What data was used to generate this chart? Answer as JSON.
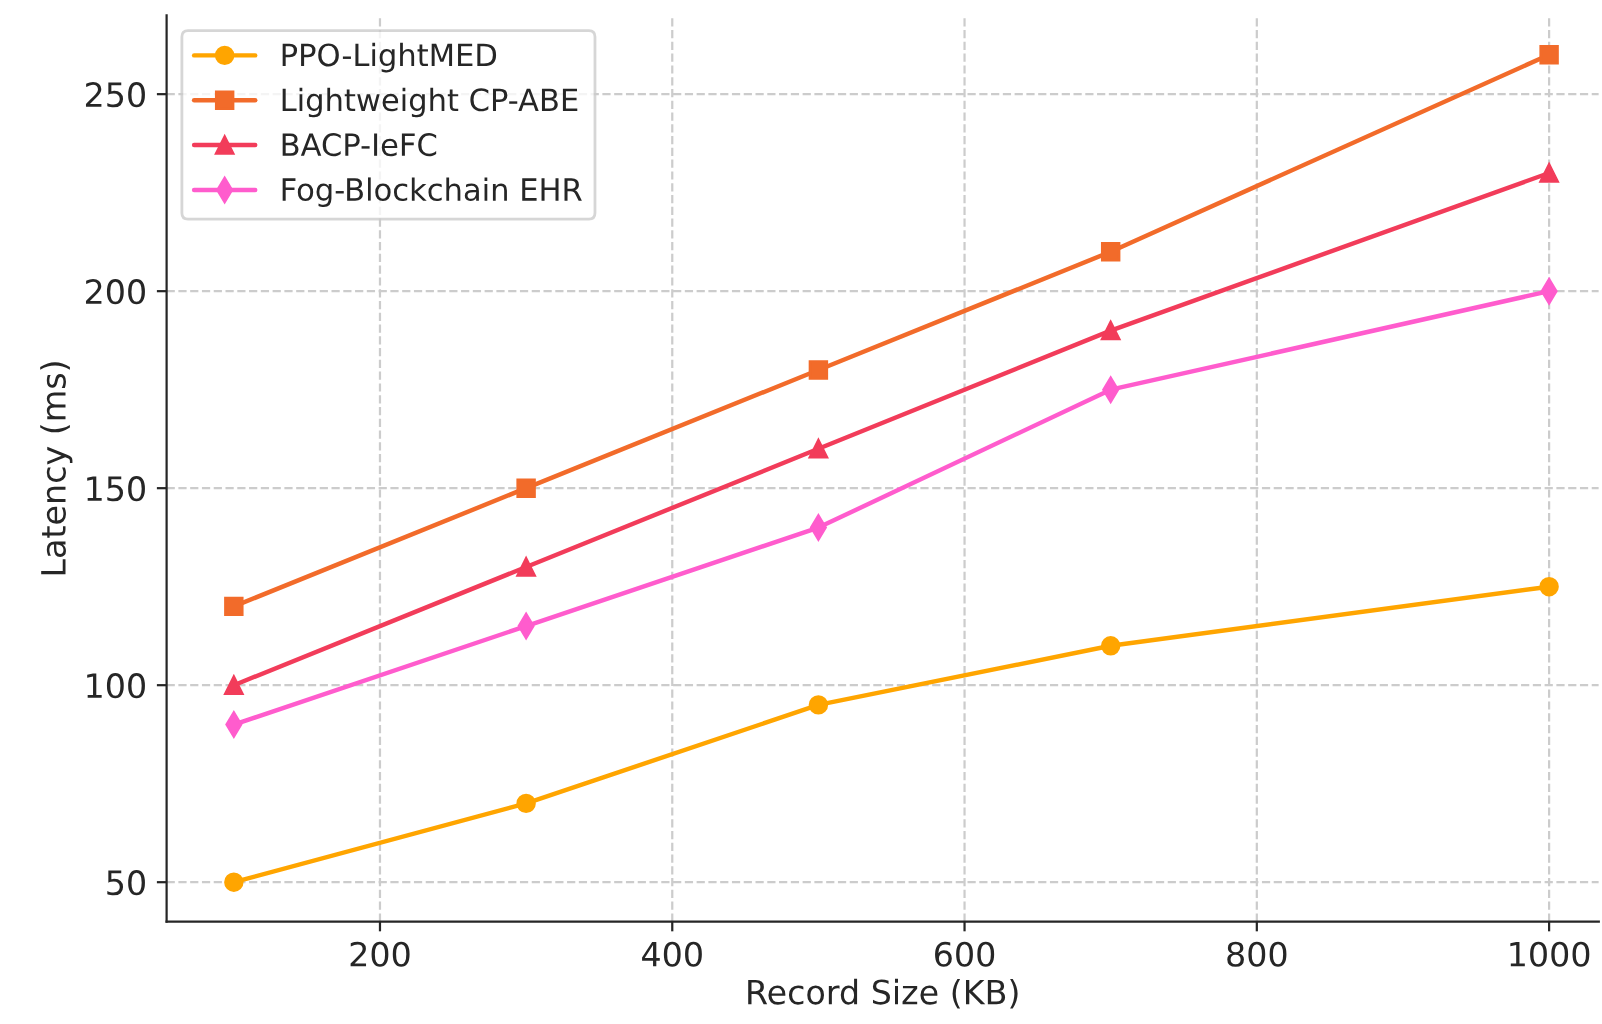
{
  "chart_data": {
    "type": "line",
    "xlabel": "Record Size (KB)",
    "ylabel": "Latency (ms)",
    "x": [
      100,
      300,
      500,
      700,
      1000
    ],
    "series": [
      {
        "name": "PPO-LightMED",
        "color": "#ffa500",
        "marker": "circle",
        "values": [
          50,
          70,
          95,
          110,
          125
        ]
      },
      {
        "name": "Lightweight CP-ABE",
        "color": "#f26b2a",
        "marker": "square",
        "values": [
          120,
          150,
          180,
          210,
          260
        ]
      },
      {
        "name": "BACP-IeFC",
        "color": "#f23c5a",
        "marker": "triangle",
        "values": [
          100,
          130,
          160,
          190,
          230
        ]
      },
      {
        "name": "Fog-Blockchain EHR",
        "color": "#ff5ccd",
        "marker": "diamond",
        "values": [
          90,
          115,
          140,
          175,
          200
        ]
      }
    ],
    "xlim": [
      54,
      1034
    ],
    "ylim": [
      40,
      270
    ],
    "xticks": [
      200,
      400,
      600,
      800,
      1000
    ],
    "yticks": [
      50,
      100,
      150,
      200,
      250
    ],
    "grid": true,
    "legend": "top left",
    "line_style": "solid"
  }
}
